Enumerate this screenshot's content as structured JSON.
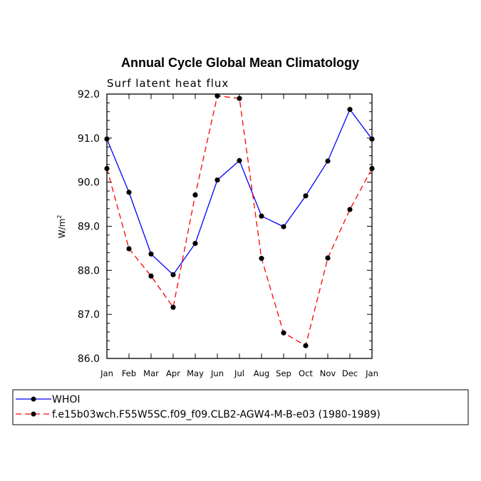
{
  "chart_data": {
    "type": "line",
    "title": "Annual Cycle Global Mean Climatology",
    "subtitle": "Surf latent heat flux",
    "ylabel": "W/m",
    "ylabel_sup": "2",
    "ylim": [
      86.0,
      92.0
    ],
    "yticks": [
      "86.0",
      "87.0",
      "88.0",
      "89.0",
      "90.0",
      "91.0",
      "92.0"
    ],
    "categories": [
      "Jan",
      "Feb",
      "Mar",
      "Apr",
      "May",
      "Jun",
      "Jul",
      "Aug",
      "Sep",
      "Oct",
      "Nov",
      "Dec",
      "Jan"
    ],
    "series": [
      {
        "name": "WHOI",
        "color": "#0000ff",
        "dash": "solid",
        "values": [
          90.98,
          89.77,
          88.37,
          87.9,
          88.61,
          90.05,
          90.49,
          89.23,
          88.99,
          89.69,
          90.48,
          91.65,
          90.98
        ]
      },
      {
        "name": "f.e15b03wch.F55W5SC.f09_f09.CLB2-AGW4-M-B-e03 (1980-1989)",
        "color": "#ff0000",
        "dash": "dashed",
        "values": [
          90.31,
          88.49,
          87.87,
          87.16,
          89.71,
          91.96,
          91.9,
          88.27,
          86.58,
          86.29,
          88.28,
          89.38,
          90.31
        ]
      }
    ],
    "legend_position": "bottom"
  }
}
